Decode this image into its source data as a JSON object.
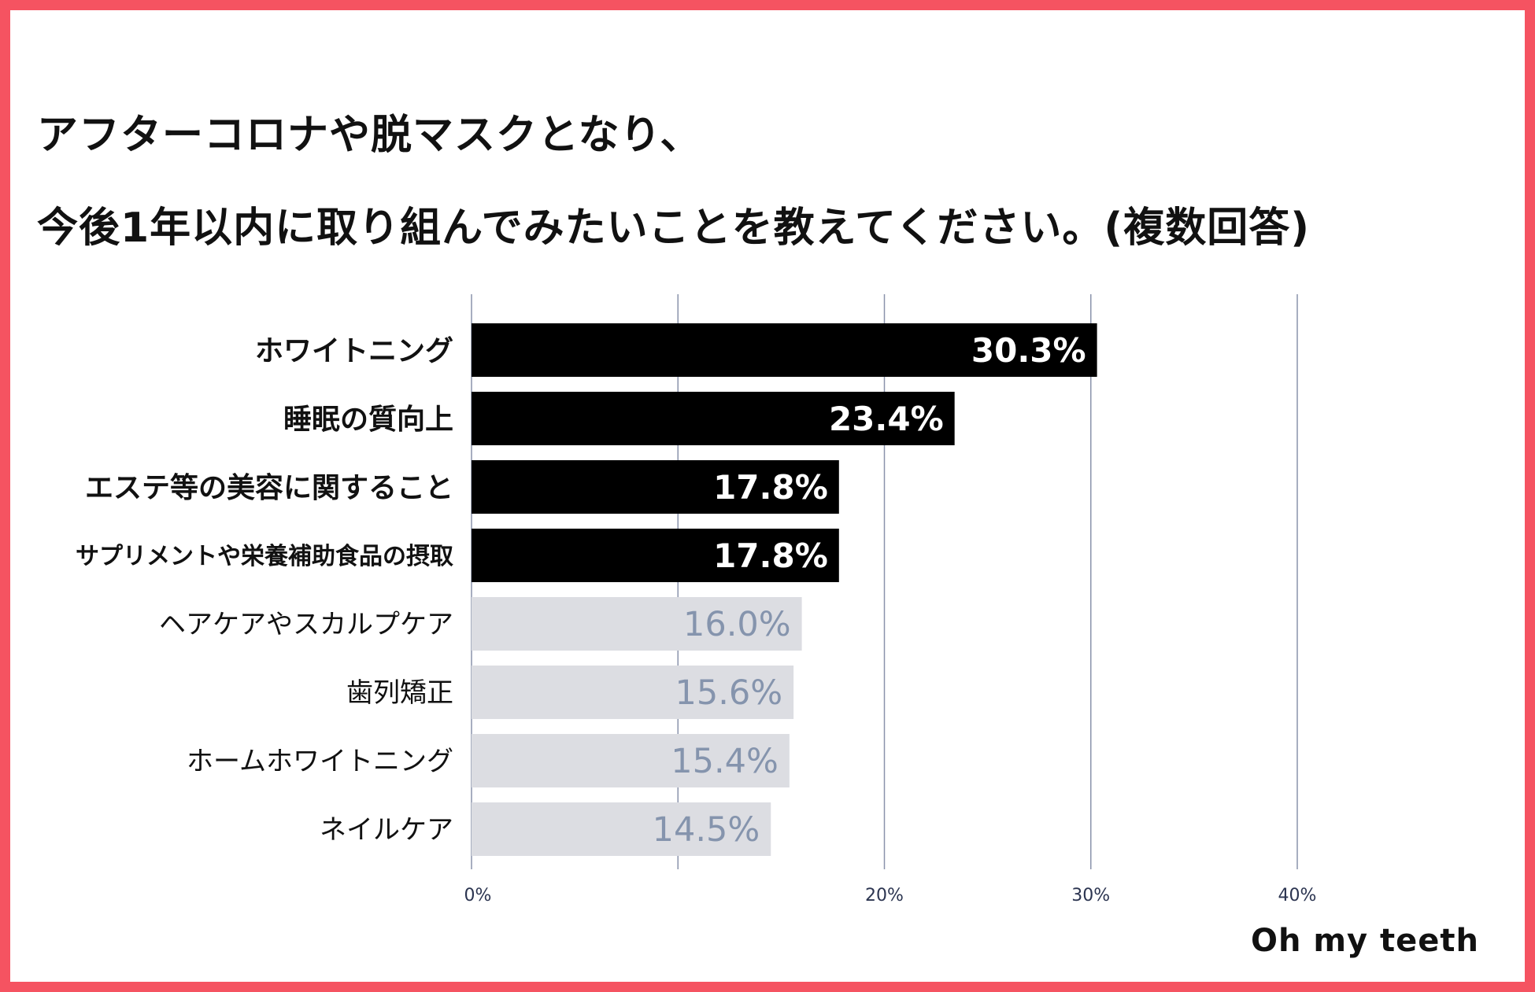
{
  "chart_data": {
    "type": "bar",
    "orientation": "horizontal",
    "title_lines": [
      "アフターコロナや脱マスクとなり、",
      "今後1年以内に取り組んでみたいことを教えてください。(複数回答)"
    ],
    "categories": [
      "ホワイトニング",
      "睡眠の質向上",
      "エステ等の美容に関すること",
      "サプリメントや栄養補助食品の摂取",
      "ヘアケアやスカルプケア",
      "歯列矯正",
      "ホームホワイトニング",
      "ネイルケア"
    ],
    "values": [
      30.3,
      23.4,
      17.8,
      17.8,
      16.0,
      15.6,
      15.4,
      14.5
    ],
    "value_labels": [
      "30.3%",
      "23.4%",
      "17.8%",
      "17.8%",
      "16.0%",
      "15.6%",
      "15.4%",
      "14.5%"
    ],
    "highlighted": [
      true,
      true,
      true,
      true,
      false,
      false,
      false,
      false
    ],
    "xlim": [
      0,
      40
    ],
    "xticks": [
      0,
      20,
      30,
      40
    ],
    "xtick_labels": [
      "0%",
      "20%",
      "30%",
      "40%"
    ],
    "gridlines": [
      0,
      10,
      20,
      30,
      40
    ],
    "grid": true,
    "colors": {
      "highlight_bar": "#000000",
      "highlight_label": "#ffffff",
      "normal_bar": "#dcdde2",
      "normal_label": "#8594ad",
      "gridline": "#8a93ab",
      "border": "#f55361"
    }
  },
  "brand": "Oh my teeth"
}
